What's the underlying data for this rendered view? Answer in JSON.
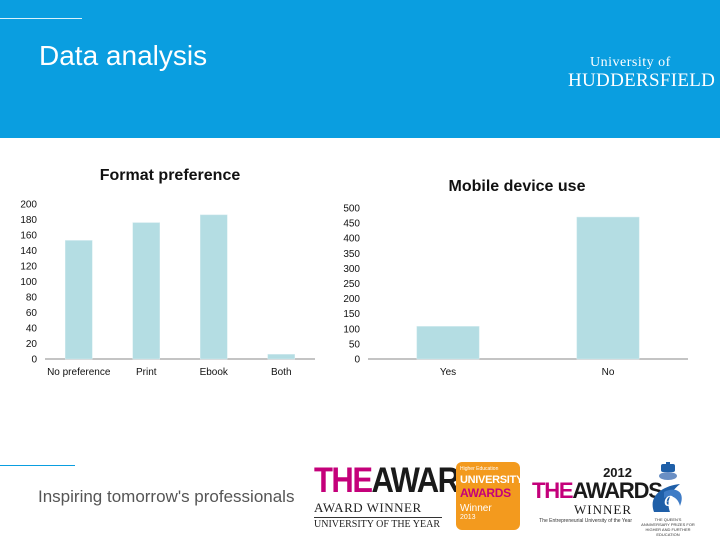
{
  "slide": {
    "title": "Data analysis",
    "tagline": "Inspiring tomorrow's professionals"
  },
  "logo": {
    "line1": "University of",
    "line2": "HUDDERSFIELD"
  },
  "awards": [
    {
      "the": "THE",
      "big": "AWARDS",
      "mid": "AWARD WINNER",
      "low": "UNIVERSITY OF THE YEAR"
    },
    {
      "small": "Higher Education",
      "uni": "UNIVERSITY",
      "awards": "AWARDS",
      "winner": "Winner",
      "year": "2013"
    },
    {
      "year": "2012",
      "the": "THE",
      "big": "AWARDS",
      "winner": "WINNER",
      "sub": "The Entrepreneurial University of the Year"
    },
    {
      "sub": "THE QUEEN'S ANNIVERSARY PRIZES FOR HIGHER AND FURTHER EDUCATION"
    }
  ],
  "colors": {
    "header": "#0a9ee0",
    "bar": "#b4dde3",
    "axis": "#888888"
  },
  "chart_data": [
    {
      "type": "bar",
      "title": "Format preference",
      "categories": [
        "No preference",
        "Print",
        "Ebook",
        "Both"
      ],
      "values": [
        153,
        176,
        186,
        6
      ],
      "ylim": [
        0,
        200
      ],
      "yticks": [
        0,
        20,
        40,
        60,
        80,
        100,
        120,
        140,
        160,
        180,
        200
      ],
      "grid": false
    },
    {
      "type": "bar",
      "title": "Mobile device use",
      "categories": [
        "Yes",
        "No"
      ],
      "values": [
        108,
        470
      ],
      "ylim": [
        0,
        500
      ],
      "yticks": [
        0,
        50,
        100,
        150,
        200,
        250,
        300,
        350,
        400,
        450,
        500
      ],
      "grid": false
    }
  ]
}
